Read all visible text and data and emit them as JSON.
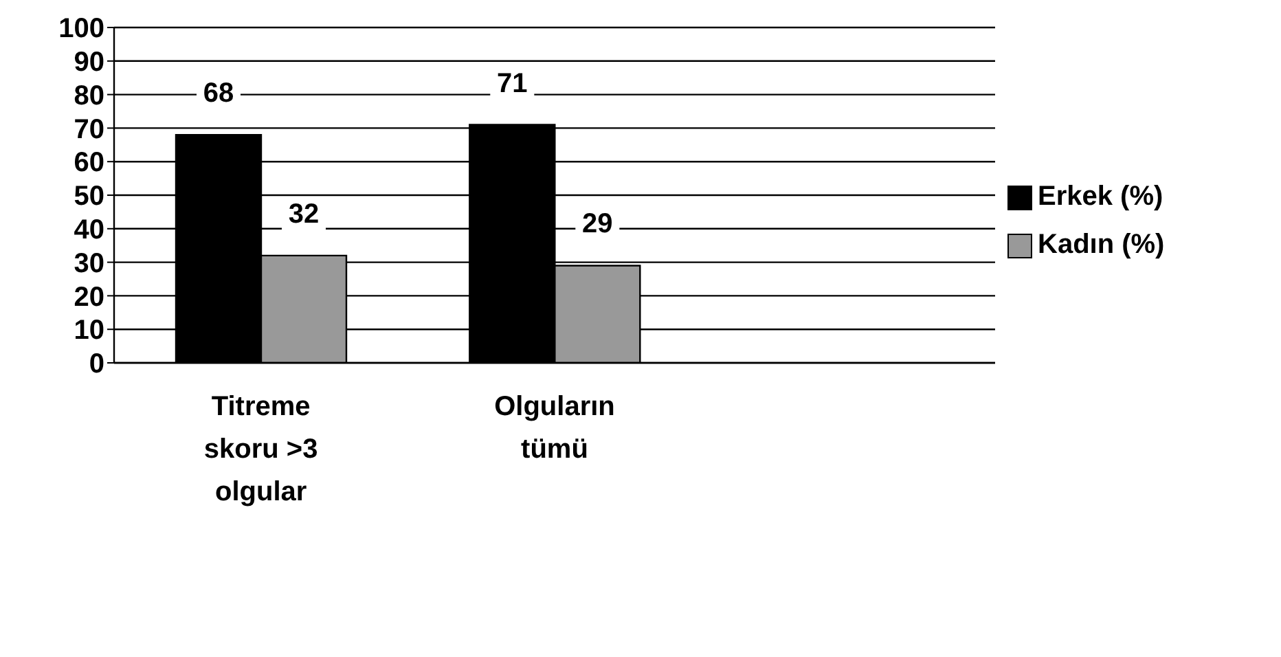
{
  "chart_data": {
    "type": "bar",
    "categories": [
      "Titreme skoru >3 olgular",
      "Olguların tümü",
      null
    ],
    "series": [
      {
        "name": "Erkek (%)",
        "color": "#000000",
        "values": [
          68,
          71,
          null
        ]
      },
      {
        "name": "Kadın (%)",
        "color": "#999999",
        "values": [
          32,
          29,
          null
        ]
      }
    ],
    "ylim": [
      0,
      100
    ],
    "yticks": [
      0,
      10,
      20,
      30,
      40,
      50,
      60,
      70,
      80,
      90,
      100
    ],
    "grid": "y",
    "legend": "right",
    "data_labels": true
  }
}
